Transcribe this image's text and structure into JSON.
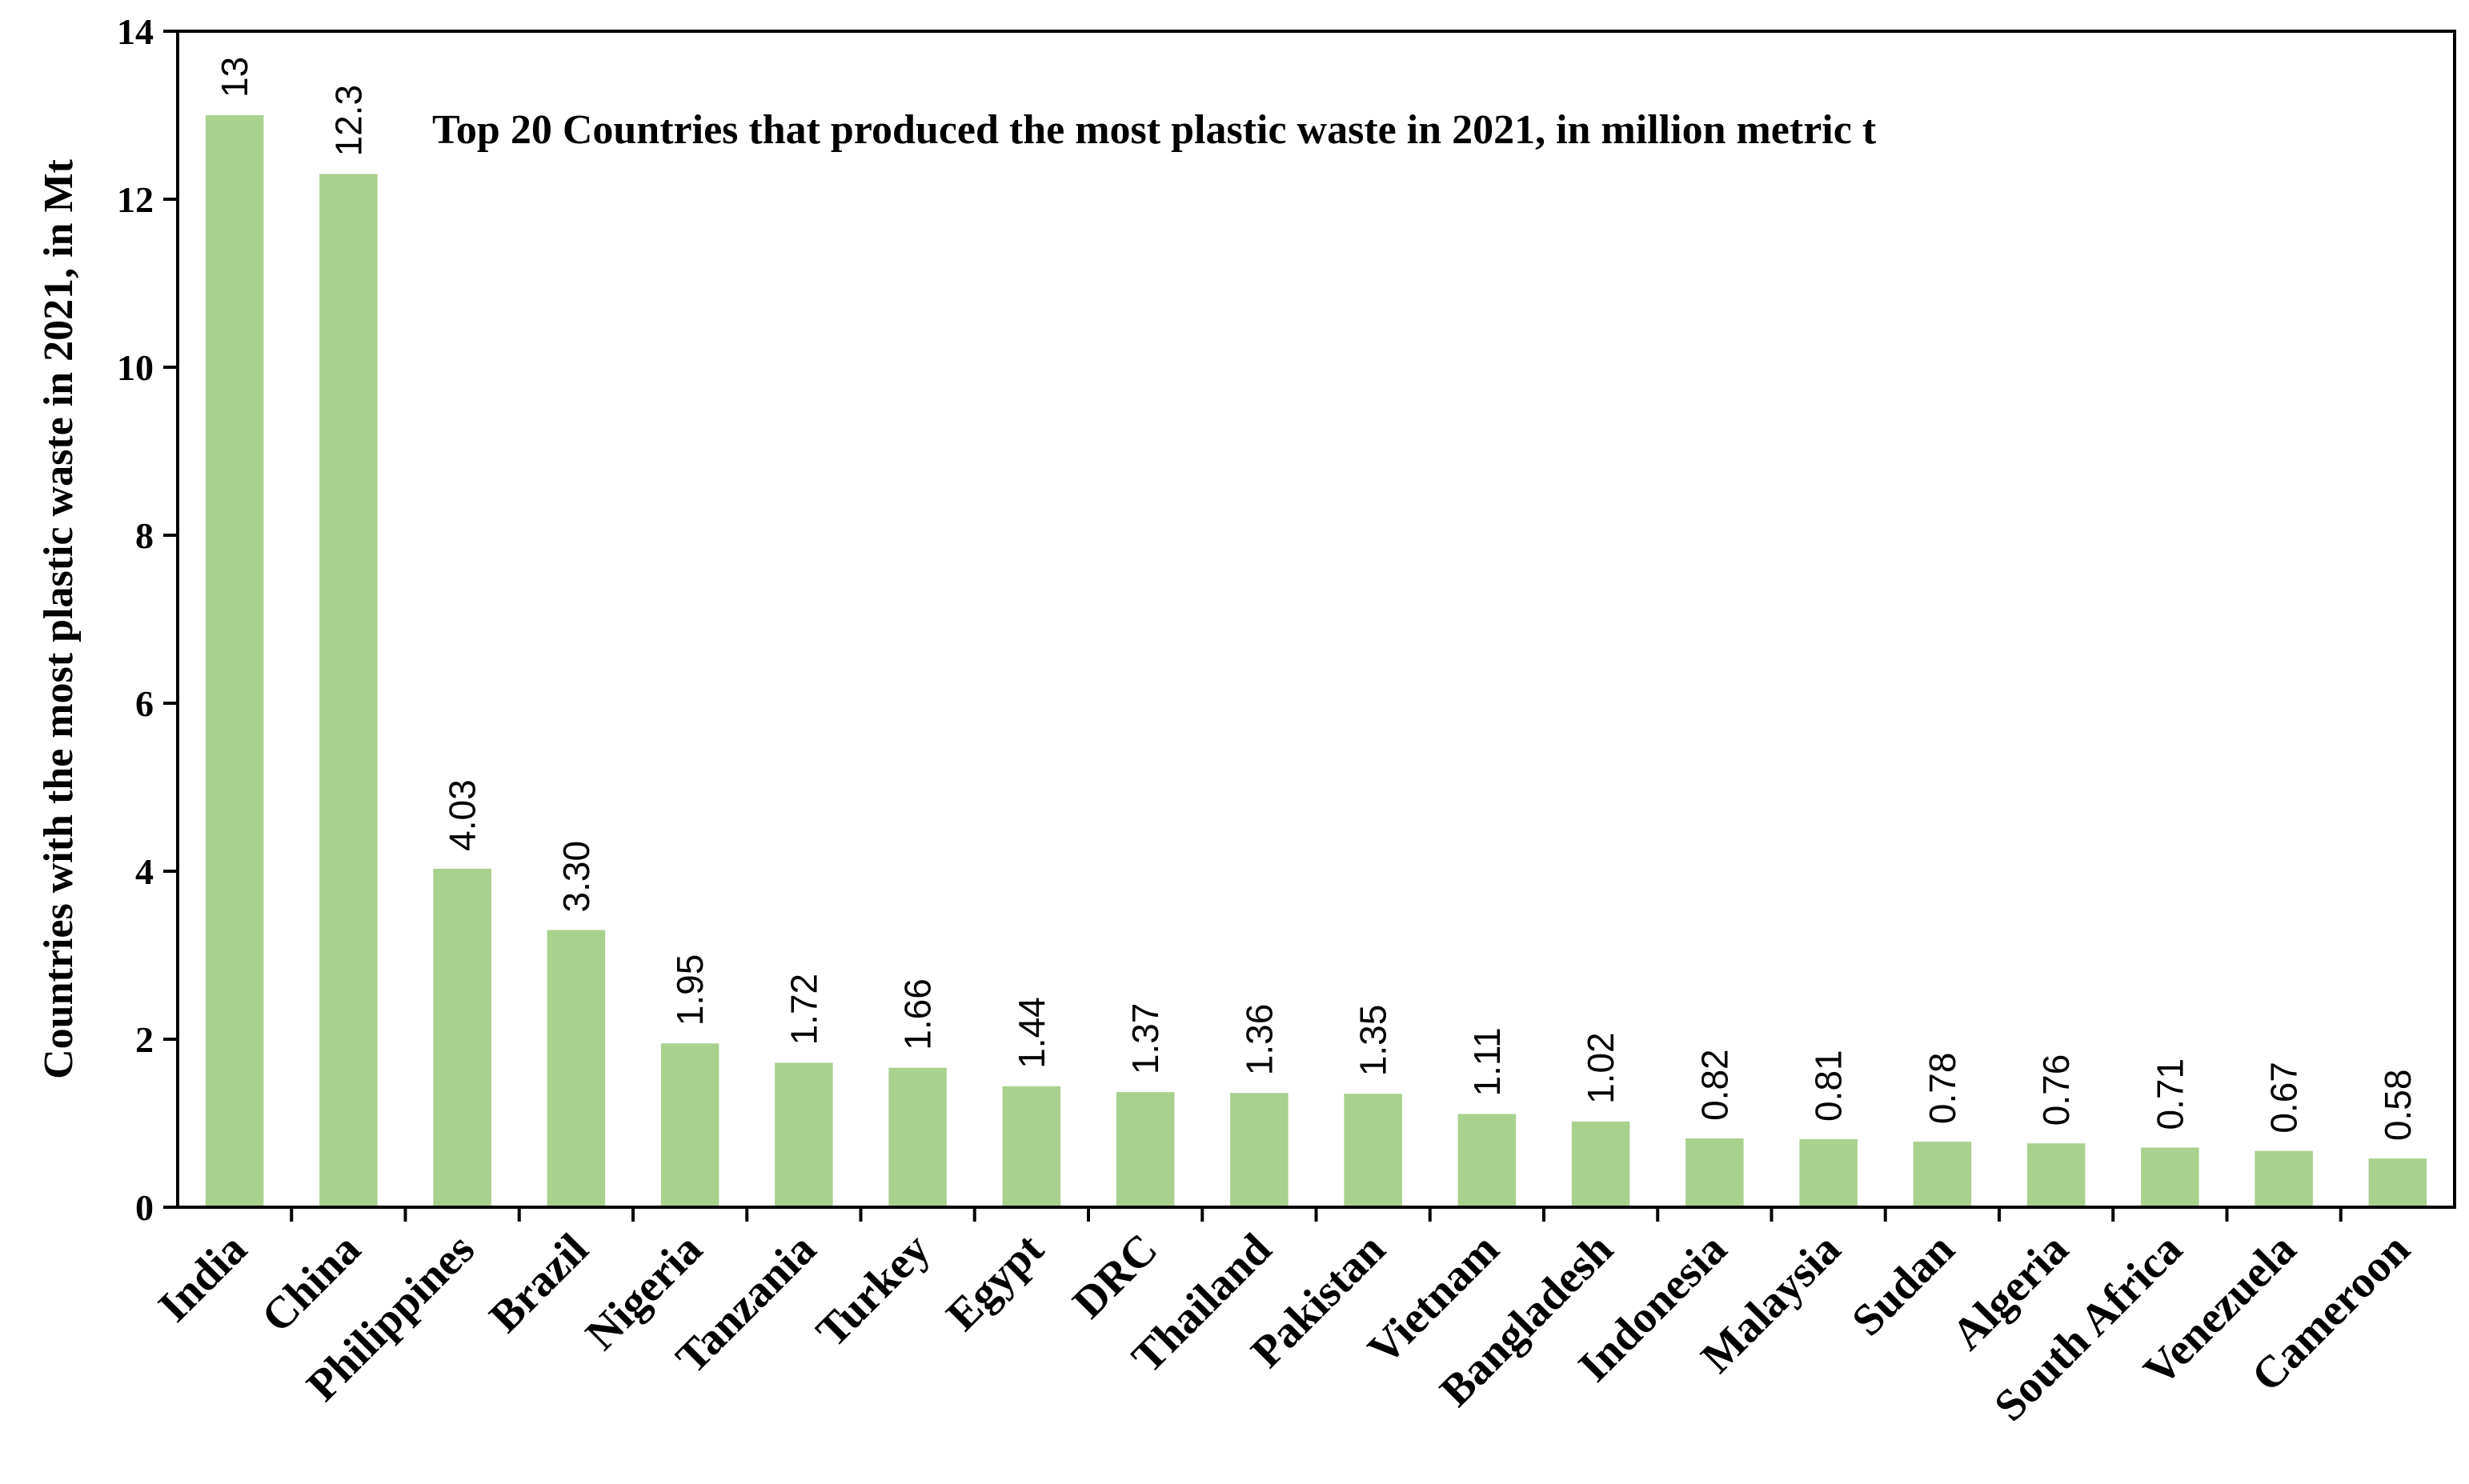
{
  "chart_data": {
    "type": "bar",
    "title": "Top 20 Countries that produced the most plastic waste in 2021, in million  metric t",
    "xlabel": "",
    "ylabel": "Countries with the most plastic waste in 2021, in Mt",
    "ylim": [
      0,
      14
    ],
    "yticks": [
      "0",
      "2",
      "4",
      "6",
      "8",
      "10",
      "12",
      "14"
    ],
    "grid": false,
    "bar_color": "#a9d18e",
    "categories": [
      "India",
      "China",
      "Philippines",
      "Brazil",
      "Nigeria",
      "Tanzania",
      "Turkey",
      "Egypt",
      "DRC",
      "Thailand",
      "Pakistan",
      "Vietnam",
      "Bangladesh",
      "Indonesia",
      "Malaysia",
      "Sudan",
      "Algeria",
      "South Africa",
      "Venezuela",
      "Cameroon"
    ],
    "values": [
      13,
      12.3,
      4.03,
      3.3,
      1.95,
      1.72,
      1.66,
      1.44,
      1.37,
      1.36,
      1.35,
      1.11,
      1.02,
      0.82,
      0.81,
      0.78,
      0.76,
      0.71,
      0.67,
      0.58
    ],
    "data_labels": [
      "13",
      "12.3",
      "4.03",
      "3.30",
      "1.95",
      "1.72",
      "1.66",
      "1.44",
      "1.37",
      "1.36",
      "1.35",
      "1.11",
      "1.02",
      "0.82",
      "0.81",
      "0.78",
      "0.76",
      "0.71",
      "0.67",
      "0.58"
    ]
  }
}
